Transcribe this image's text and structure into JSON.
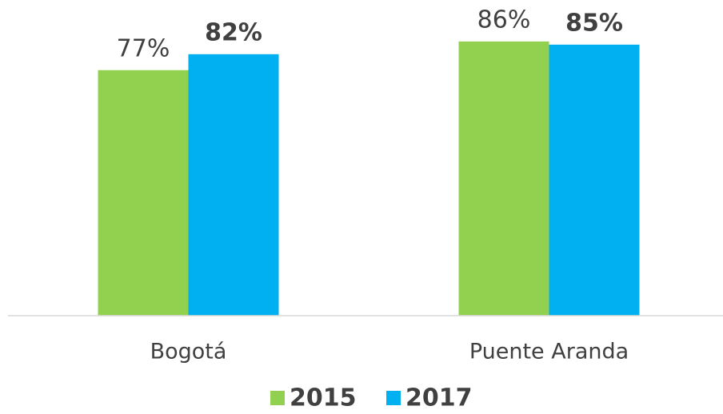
{
  "chart_data": {
    "type": "bar",
    "categories": [
      "Bogotá",
      "Puente Aranda"
    ],
    "series": [
      {
        "name": "2015",
        "color": "#92d050",
        "values": [
          77,
          86
        ],
        "value_labels": [
          "77%",
          "86%"
        ]
      },
      {
        "name": "2017",
        "color": "#00b0f0",
        "values": [
          82,
          85
        ],
        "value_labels": [
          "82%",
          "85%"
        ]
      }
    ],
    "ylim": [
      0,
      100
    ],
    "legend": "bottom"
  }
}
